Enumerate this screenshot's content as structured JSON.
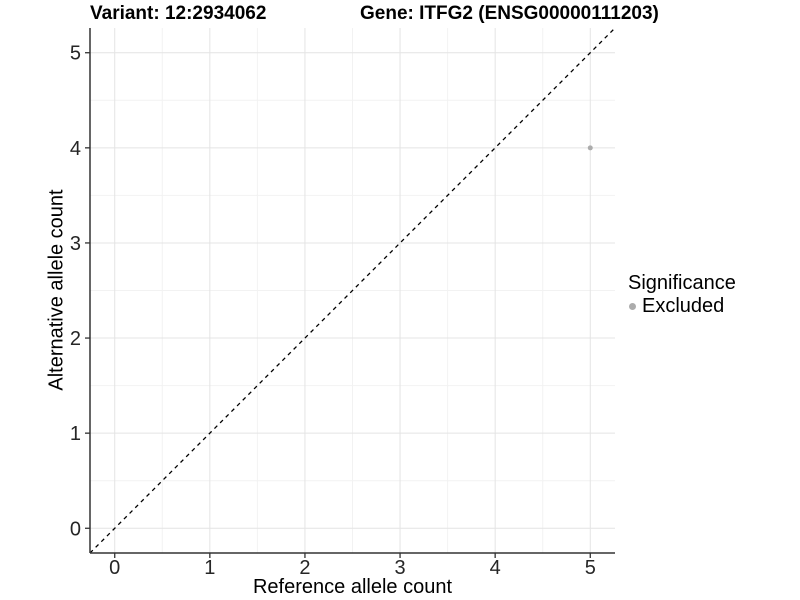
{
  "titles": {
    "variant": "Variant: 12:2934062",
    "gene": "Gene: ITFG2 (ENSG00000111203)"
  },
  "legend": {
    "title": "Significance",
    "items": [
      {
        "label": "Excluded",
        "color": "#acacac"
      }
    ]
  },
  "chart_data": {
    "type": "scatter",
    "title": "Variant: 12:2934062 | Gene: ITFG2 (ENSG00000111203)",
    "xlabel": "Reference allele count",
    "ylabel": "Alternative allele count",
    "xlim": [
      -0.26,
      5.26
    ],
    "ylim": [
      -0.26,
      5.26
    ],
    "x_ticks": [
      0,
      1,
      2,
      3,
      4,
      5
    ],
    "y_ticks": [
      0,
      1,
      2,
      3,
      4,
      5
    ],
    "x_minor": [
      0.5,
      1.5,
      2.5,
      3.5,
      4.5
    ],
    "y_minor": [
      0.5,
      1.5,
      2.5,
      3.5,
      4.5
    ],
    "grid": true,
    "legend_position": "right",
    "series": [
      {
        "name": "Excluded",
        "color": "#acacac",
        "point_radius": 2.5,
        "points": [
          {
            "x": 5,
            "y": 4
          }
        ]
      }
    ],
    "reference_line": {
      "type": "identity",
      "label": "y = x",
      "style": "dashed",
      "color": "#000000"
    },
    "colors": {
      "grid_major": "#e4e4e4",
      "grid_minor": "#f2f2f2",
      "axis_line": "#333333",
      "tick_mark": "#333333",
      "tick_label": "#262626",
      "background": "#ffffff"
    }
  }
}
